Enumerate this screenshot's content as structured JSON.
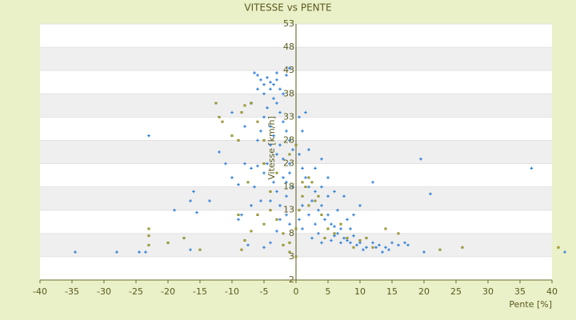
{
  "chart_data": {
    "type": "scatter",
    "title": "VITESSE vs PENTE",
    "x_label": "Pente [%]",
    "y_label": "Vitesse [km/h]",
    "xlim": [
      -40,
      40
    ],
    "xticks": [
      -40,
      -35,
      -30,
      -25,
      -20,
      -15,
      -10,
      -5,
      0,
      5,
      10,
      15,
      20,
      25,
      30,
      35,
      40
    ],
    "ylim": [
      -2,
      53
    ],
    "yticks": [
      53,
      48,
      43,
      38,
      33,
      28,
      23,
      18,
      13,
      8,
      3,
      -2
    ],
    "banded_grid": true,
    "series": [
      {
        "color": "#2f7fd8",
        "x": [
          -34.5,
          -28,
          -24.5,
          -23.5,
          -16.5,
          -23,
          -16,
          -16.5,
          -13.5,
          -11,
          -10,
          -9,
          -8,
          -7,
          -6,
          -5,
          -4.5,
          -3.5,
          -3,
          -2,
          -1,
          -1.5,
          -2.5,
          -4,
          -5.5,
          -6.5,
          -7,
          -8.5,
          -9,
          -7.5,
          -5,
          -4,
          -3,
          -2.5,
          -1.5,
          -1,
          -6.5,
          -6,
          -5.5,
          -5,
          -4.5,
          -4,
          -3.5,
          -3,
          -2.5,
          -2,
          -1.5,
          -1,
          -4,
          -3.5,
          -3,
          -2.5,
          -2,
          -1.5,
          -1,
          -0.5,
          -4.5,
          -5,
          -5.5,
          -6,
          -4,
          -3,
          -2,
          -1,
          0.5,
          1,
          1.5,
          2,
          2.5,
          3,
          3.5,
          4,
          4.5,
          5,
          5.5,
          6,
          6.5,
          7,
          7.5,
          8,
          8.5,
          9,
          9.5,
          10,
          11,
          12,
          12.5,
          13,
          14,
          14.5,
          15,
          16,
          17,
          17.5,
          12,
          10,
          9,
          7.5,
          6,
          5,
          4,
          3,
          2,
          1,
          0.5,
          1.5,
          4,
          5,
          6.5,
          8,
          3,
          2,
          1,
          0.5,
          20,
          21,
          19.5,
          36.8,
          42,
          -10,
          -7,
          -8,
          -12,
          -19,
          -15.5,
          1,
          2.5,
          4,
          5.5,
          7,
          10.5,
          13.5,
          3.5,
          6,
          8.5,
          -0.5,
          -1.5,
          -2.5,
          -3.5,
          -4,
          -5,
          -6,
          -3
        ],
        "values": [
          4,
          4,
          4,
          4,
          4.5,
          29,
          17,
          15,
          15,
          23,
          20,
          18.5,
          23,
          22,
          22.5,
          21,
          23,
          19,
          17,
          20,
          21,
          16,
          14,
          15,
          15,
          18,
          14,
          12,
          11,
          5.5,
          5,
          6,
          8.5,
          11,
          12,
          10,
          42.5,
          42,
          41,
          40,
          41.5,
          40.5,
          40,
          41,
          39,
          38,
          42,
          43.5,
          39,
          37,
          36,
          34,
          32,
          30,
          28,
          26,
          35,
          33,
          30,
          28,
          27,
          25,
          24,
          23,
          25,
          22,
          20,
          18,
          15,
          17,
          13,
          14,
          11,
          12,
          10,
          9.5,
          8,
          9,
          7,
          6.5,
          6,
          7.5,
          5.5,
          6,
          5,
          6,
          5,
          5.5,
          5,
          4.5,
          6,
          5.5,
          6,
          5.5,
          19,
          14,
          12,
          16,
          17,
          20,
          24,
          22,
          26,
          30,
          33,
          34,
          18,
          16,
          13,
          11,
          10,
          12,
          14,
          11,
          4,
          16.5,
          24,
          22,
          4,
          34,
          36,
          31,
          25.5,
          13,
          12.5,
          9,
          7,
          6,
          6.5,
          6,
          4.5,
          4,
          8,
          7.5,
          9,
          18,
          19,
          27,
          29,
          31,
          38,
          39,
          42.5
        ]
      },
      {
        "color": "#a8a628",
        "x": [
          -23,
          -23,
          -23,
          -20,
          -17.5,
          -15,
          -12.5,
          -12,
          -11.5,
          -10,
          -9,
          -8.5,
          -8,
          -7,
          -6,
          -5,
          -7.5,
          -9,
          -8,
          -8.5,
          -7,
          -6,
          -5,
          -4,
          -3,
          -2,
          -2,
          -1,
          -1,
          0,
          0,
          0.5,
          1,
          1.5,
          2,
          2.5,
          3,
          3.5,
          4,
          5,
          6,
          7,
          8,
          9,
          10,
          11,
          12,
          14,
          16,
          22.5,
          26,
          41,
          -1,
          0,
          1,
          2,
          4.5,
          -3,
          -4,
          -5
        ],
        "values": [
          5.5,
          7.5,
          9,
          6,
          7,
          4.5,
          36,
          33,
          32,
          29,
          28,
          34,
          35.5,
          36,
          32,
          28,
          19,
          12,
          6.5,
          4.5,
          8.5,
          12,
          10,
          13,
          11,
          8,
          5.5,
          6,
          4,
          3,
          9,
          13,
          16,
          18,
          20,
          19,
          15,
          16,
          12,
          9,
          8,
          10,
          7,
          5,
          6.5,
          7,
          5,
          9,
          8,
          4.5,
          5,
          5,
          25,
          27,
          19,
          14,
          7,
          21,
          17,
          23
        ]
      }
    ]
  }
}
